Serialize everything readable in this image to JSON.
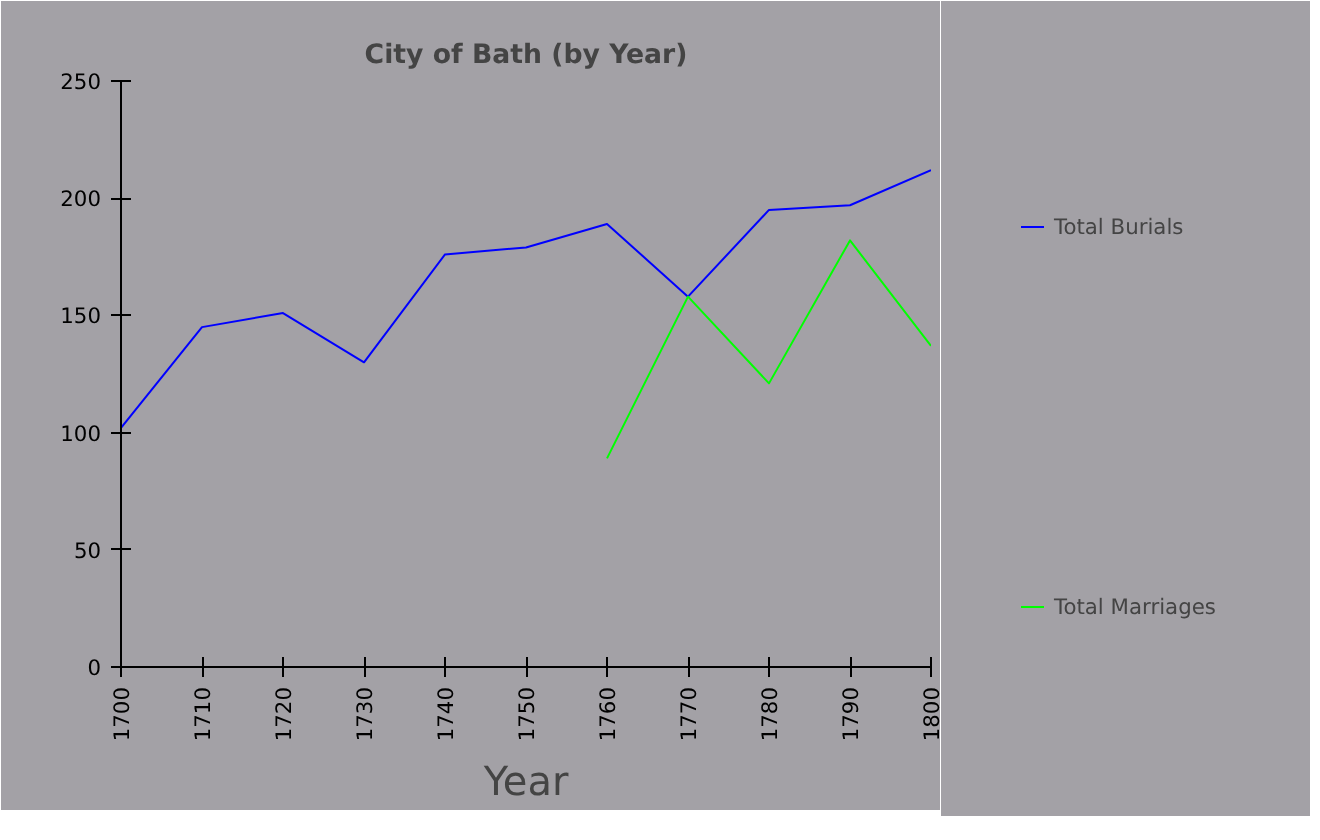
{
  "chart_data": {
    "type": "line",
    "title": "City of Bath (by Year)",
    "xlabel": "Year",
    "x": [
      1700,
      1710,
      1720,
      1730,
      1740,
      1750,
      1760,
      1770,
      1780,
      1790,
      1800
    ],
    "series": [
      {
        "name": "Total Burials",
        "color": "#0000ff",
        "values": [
          102,
          145,
          151,
          130,
          176,
          179,
          189,
          158,
          195,
          197,
          212
        ]
      },
      {
        "name": "Total Marriages",
        "color": "#00ff00",
        "values": [
          null,
          null,
          null,
          null,
          null,
          null,
          89,
          158,
          121,
          182,
          137
        ]
      }
    ],
    "xlim": [
      1700,
      1800
    ],
    "xticks": [
      1700,
      1710,
      1720,
      1730,
      1740,
      1750,
      1760,
      1770,
      1780,
      1790,
      1800
    ],
    "ylim": [
      0,
      250
    ],
    "yticks": [
      0,
      50,
      100,
      150,
      200,
      250
    ],
    "grid": false,
    "legend": "right",
    "marker": "none",
    "line_style": "solid"
  }
}
